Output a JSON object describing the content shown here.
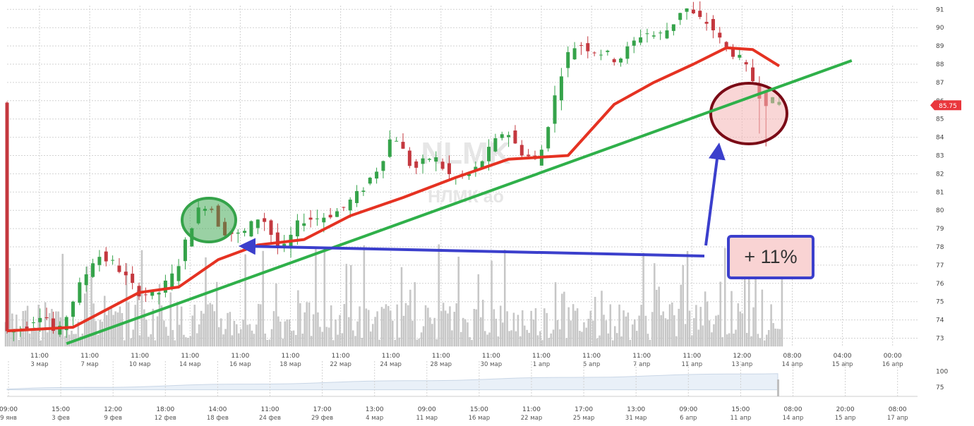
{
  "chart_data": [
    {
      "type": "candlestick",
      "watermark": {
        "ticker": "NLMK",
        "name": "НЛМК ао"
      },
      "y_ticks": [
        73,
        74,
        75,
        76,
        77,
        78,
        79,
        80,
        81,
        82,
        83,
        84,
        85,
        86,
        87,
        88,
        89,
        90,
        91
      ],
      "ylim": [
        72.6,
        91.5
      ],
      "last_price": "85.75",
      "grid": true,
      "x_ticks": [
        {
          "time": "11:00",
          "date": "3 мар"
        },
        {
          "time": "11:00",
          "date": "7 мар"
        },
        {
          "time": "11:00",
          "date": "10 мар"
        },
        {
          "time": "11:00",
          "date": "14 мар"
        },
        {
          "time": "11:00",
          "date": "16 мар"
        },
        {
          "time": "11:00",
          "date": "18 мар"
        },
        {
          "time": "11:00",
          "date": "22 мар"
        },
        {
          "time": "11:00",
          "date": "24 мар"
        },
        {
          "time": "11:00",
          "date": "28 мар"
        },
        {
          "time": "11:00",
          "date": "30 мар"
        },
        {
          "time": "11:00",
          "date": "1 апр"
        },
        {
          "time": "11:00",
          "date": "5 апр"
        },
        {
          "time": "11:00",
          "date": "7 апр"
        },
        {
          "time": "11:00",
          "date": "11 апр"
        },
        {
          "time": "12:00",
          "date": "13 апр"
        },
        {
          "time": "08:00",
          "date": "14 апр"
        },
        {
          "time": "04:00",
          "date": "15 апр"
        },
        {
          "time": "00:00",
          "date": "16 апр"
        }
      ],
      "price_path": [
        [
          0,
          73.3
        ],
        [
          3,
          73.6
        ],
        [
          6,
          74.5
        ],
        [
          8,
          73.0
        ],
        [
          11,
          75.5
        ],
        [
          14,
          77.6
        ],
        [
          17,
          77.0
        ],
        [
          20,
          75.6
        ],
        [
          23,
          75.3
        ],
        [
          26,
          76.6
        ],
        [
          29,
          79.8
        ],
        [
          31,
          80.5
        ],
        [
          33,
          78.9
        ],
        [
          36,
          78.6
        ],
        [
          39,
          79.8
        ],
        [
          42,
          77.6
        ],
        [
          45,
          79.5
        ],
        [
          48,
          79.6
        ],
        [
          51,
          80.0
        ],
        [
          54,
          81.0
        ],
        [
          57,
          82.5
        ],
        [
          59,
          84.3
        ],
        [
          62,
          82.2
        ],
        [
          65,
          83.0
        ],
        [
          68,
          81.7
        ],
        [
          71,
          82.0
        ],
        [
          73,
          83.0
        ],
        [
          76,
          84.5
        ],
        [
          78,
          83.3
        ],
        [
          81,
          82.6
        ],
        [
          83,
          85.5
        ],
        [
          85,
          88.3
        ],
        [
          87,
          89.2
        ],
        [
          89,
          88.8
        ],
        [
          91,
          88.6
        ],
        [
          93,
          88.2
        ],
        [
          95,
          89.0
        ],
        [
          97,
          89.8
        ],
        [
          99,
          89.5
        ],
        [
          101,
          90.0
        ],
        [
          103,
          91.2
        ],
        [
          105,
          90.5
        ],
        [
          107,
          90.2
        ],
        [
          109,
          89.0
        ],
        [
          111,
          88.5
        ],
        [
          113,
          87.5
        ],
        [
          115,
          86.0
        ],
        [
          117,
          85.9
        ]
      ],
      "moving_average": [
        [
          0,
          73.4
        ],
        [
          10,
          73.6
        ],
        [
          20,
          75.5
        ],
        [
          26,
          75.8
        ],
        [
          32,
          77.3
        ],
        [
          38,
          78.1
        ],
        [
          45,
          78.4
        ],
        [
          52,
          79.7
        ],
        [
          60,
          80.7
        ],
        [
          68,
          81.8
        ],
        [
          76,
          82.8
        ],
        [
          85,
          83.0
        ],
        [
          92,
          85.8
        ],
        [
          98,
          87.0
        ],
        [
          104,
          88.0
        ],
        [
          109,
          88.9
        ],
        [
          113,
          88.8
        ],
        [
          117,
          87.9
        ]
      ],
      "trendline": [
        [
          9,
          72.7
        ],
        [
          128,
          88.2
        ]
      ],
      "volume_outline": true
    },
    {
      "type": "area",
      "role": "navigator",
      "y_ticks": [
        100,
        75
      ],
      "x_ticks": [
        {
          "time": "09:00",
          "date": "9 янв"
        },
        {
          "time": "15:00",
          "date": "3 фев"
        },
        {
          "time": "12:00",
          "date": "9 фев"
        },
        {
          "time": "18:00",
          "date": "12 фев"
        },
        {
          "time": "14:00",
          "date": "18 фев"
        },
        {
          "time": "11:00",
          "date": "24 фев"
        },
        {
          "time": "17:00",
          "date": "29 фев"
        },
        {
          "time": "13:00",
          "date": "4 мар"
        },
        {
          "time": "09:00",
          "date": "11 мар"
        },
        {
          "time": "15:00",
          "date": "16 мар"
        },
        {
          "time": "11:00",
          "date": "22 мар"
        },
        {
          "time": "17:00",
          "date": "25 мар"
        },
        {
          "time": "13:00",
          "date": "31 мар"
        },
        {
          "time": "09:00",
          "date": "6 апр"
        },
        {
          "time": "15:00",
          "date": "11 апр"
        },
        {
          "time": "08:00",
          "date": "14 апр"
        },
        {
          "time": "20:00",
          "date": "15 апр"
        },
        {
          "time": "08:00",
          "date": "17 апр"
        }
      ]
    }
  ],
  "annotation": {
    "label": "+ 11%"
  },
  "colors": {
    "up": "#35a34a",
    "down": "#c4383f",
    "moving_average": "#e53222",
    "trendline": "#2fb04a",
    "arrow": "#3b3fcc",
    "last_price_tag": "#e9363c",
    "volume": "#c9c9c9",
    "grid": "#d2d2d2"
  }
}
